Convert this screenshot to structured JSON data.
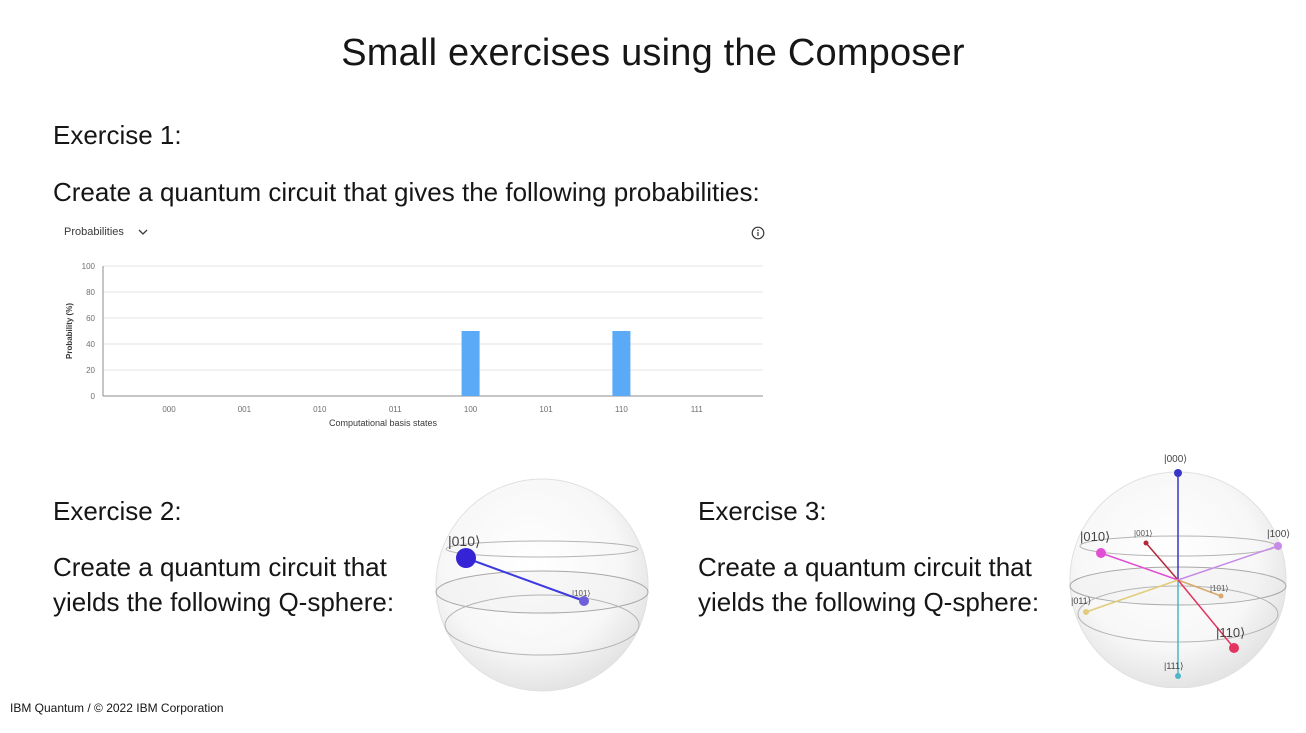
{
  "slide": {
    "title": "Small exercises using the Composer",
    "footer": "IBM Quantum / © 2022 IBM Corporation"
  },
  "exercise1": {
    "heading": "Exercise 1:",
    "text": "Create a quantum circuit that gives the following probabilities:"
  },
  "exercise2": {
    "heading": "Exercise 2:",
    "text": "Create a quantum circuit that yields the following Q-sphere:"
  },
  "exercise3": {
    "heading": "Exercise 3:",
    "text": "Create a quantum circuit that yields the following Q-sphere:"
  },
  "prob_panel": {
    "dropdown_label": "Probabilities",
    "icons": {
      "dropdown": "chevron-down-icon",
      "info": "info-icon"
    }
  },
  "chart_data": {
    "type": "bar",
    "categories": [
      "000",
      "001",
      "010",
      "011",
      "100",
      "101",
      "110",
      "111"
    ],
    "values": [
      0,
      0,
      0,
      0,
      50,
      0,
      50,
      0
    ],
    "ylim": [
      0,
      100
    ],
    "yticks": [
      0,
      20,
      40,
      60,
      80,
      100
    ],
    "xlabel": "Computational basis states",
    "ylabel": "Probability (%)",
    "bar_color": "#5aaaf8",
    "grid": true
  },
  "qsphere2": {
    "states": [
      {
        "label": "|010⟩",
        "color": "#3524d6"
      },
      {
        "label": "|101⟩",
        "color": "#6f5fd8"
      }
    ],
    "line_color": "#3d3ae0"
  },
  "qsphere3": {
    "states": [
      {
        "label": "|000⟩",
        "color": "#3a35c9"
      },
      {
        "label": "|001⟩",
        "color": "#b5283c"
      },
      {
        "label": "|010⟩",
        "color": "#e04fd3"
      },
      {
        "label": "|100⟩",
        "color": "#c88ae8"
      },
      {
        "label": "|011⟩",
        "color": "#e2cc7a"
      },
      {
        "label": "|101⟩",
        "color": "#d8a96e"
      },
      {
        "label": "|110⟩",
        "color": "#e23560"
      },
      {
        "label": "|111⟩",
        "color": "#4eb5c8"
      }
    ]
  }
}
